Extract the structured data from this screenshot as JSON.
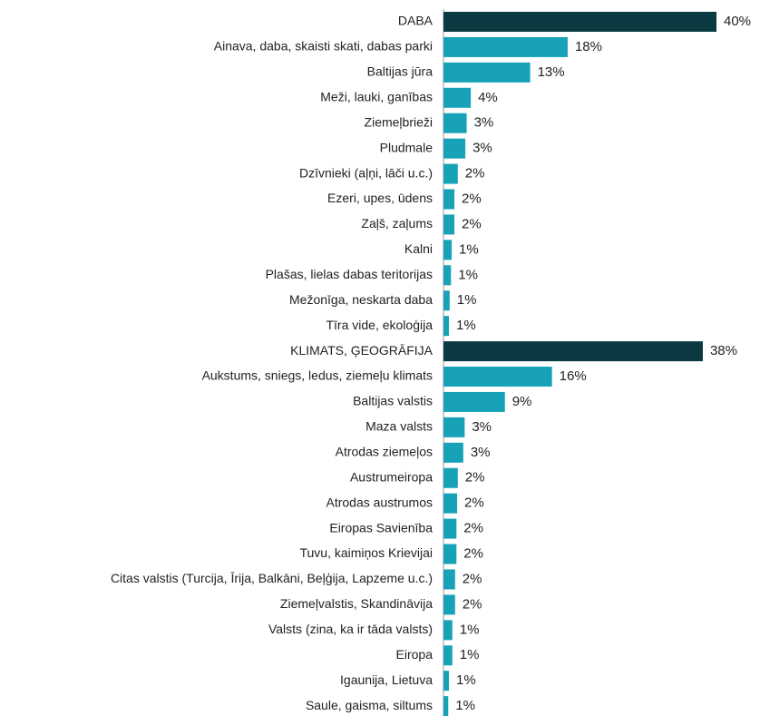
{
  "chart_data": {
    "type": "bar",
    "orientation": "horizontal",
    "categories": [
      "DABA",
      "Ainava, daba, skaisti skati, dabas parki",
      "Baltijas jūra",
      "Meži, lauki, ganības",
      "Ziemeļbrieži",
      "Pludmale",
      "Dzīvnieki (aļņi, lāči u.c.)",
      "Ezeri, upes, ūdens",
      "Zaļš, zaļums",
      "Kalni",
      "Plašas, lielas dabas teritorijas",
      "Mežonīga, neskarta daba",
      "Tīra vide, ekoloģija",
      "KLIMATS, ĢEOGRĀFIJA",
      "Aukstums, sniegs, ledus, ziemeļu klimats",
      "Baltijas valstis",
      "Maza valsts",
      "Atrodas ziemeļos",
      "Austrumeiropa",
      "Atrodas austrumos",
      "Eiropas Savienība",
      "Tuvu, kaimiņos Krievijai",
      "Citas valstis (Turcija, Īrija, Balkāni, Beļģija, Lapzeme u.c.)",
      "Ziemeļvalstis, Skandināvija",
      "Valsts (zina, ka ir tāda valsts)",
      "Eiropa",
      "Igaunija, Lietuva",
      "Saule, gaisma, siltums"
    ],
    "values": [
      40,
      18.2,
      12.7,
      4.0,
      3.4,
      3.2,
      2.1,
      1.6,
      1.6,
      1.2,
      1.1,
      0.9,
      0.8,
      38,
      15.9,
      9.0,
      3.1,
      2.9,
      2.1,
      2.0,
      1.9,
      1.9,
      1.7,
      1.7,
      1.3,
      1.3,
      0.8,
      0.7
    ],
    "value_labels": [
      "40%",
      "18%",
      "13%",
      "4%",
      "3%",
      "3%",
      "2%",
      "2%",
      "2%",
      "1%",
      "1%",
      "1%",
      "1%",
      "38%",
      "16%",
      "9%",
      "3%",
      "3%",
      "2%",
      "2%",
      "2%",
      "2%",
      "2%",
      "2%",
      "1%",
      "1%",
      "1%",
      "1%"
    ],
    "colors": [
      "#0c3a42",
      "#17a2b8",
      "#17a2b8",
      "#17a2b8",
      "#17a2b8",
      "#17a2b8",
      "#17a2b8",
      "#17a2b8",
      "#17a2b8",
      "#17a2b8",
      "#17a2b8",
      "#17a2b8",
      "#17a2b8",
      "#0c3a42",
      "#17a2b8",
      "#17a2b8",
      "#17a2b8",
      "#17a2b8",
      "#17a2b8",
      "#17a2b8",
      "#17a2b8",
      "#17a2b8",
      "#17a2b8",
      "#17a2b8",
      "#17a2b8",
      "#17a2b8",
      "#17a2b8",
      "#17a2b8"
    ]
  }
}
